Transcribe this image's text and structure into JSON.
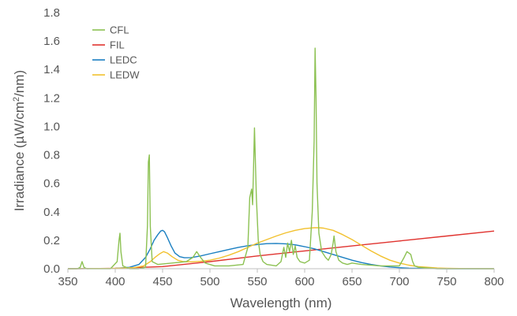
{
  "chart_data": {
    "type": "line",
    "title": "",
    "xlabel": "Wavelength (nm)",
    "ylabel_prefix": "Irradiance (µW/cm",
    "ylabel_sup": "2",
    "ylabel_suffix": "/nm)",
    "xlim": [
      350,
      800
    ],
    "ylim": [
      0,
      1.8
    ],
    "x_ticks": [
      350,
      400,
      450,
      500,
      550,
      600,
      650,
      700,
      750,
      800
    ],
    "x_tick_labels": [
      "350",
      "400",
      "450",
      "500",
      "550",
      "600",
      "650",
      "700",
      "750",
      "800"
    ],
    "y_ticks": [
      0,
      0.2,
      0.4,
      0.6,
      0.8,
      1.0,
      1.2,
      1.4,
      1.6,
      1.8
    ],
    "y_tick_labels": [
      "0.0",
      "0.2",
      "0.4",
      "0.6",
      "0.8",
      "1.0",
      "1.2",
      "1.4",
      "1.6",
      "1.8"
    ],
    "grid": false,
    "legend_position": "top-left",
    "series": [
      {
        "name": "CFL",
        "color": "#8cc152",
        "x": [
          350,
          360,
          363,
          365,
          367,
          370,
          380,
          395,
          402,
          404,
          405,
          406,
          408,
          415,
          425,
          432,
          434,
          435,
          436,
          437,
          439,
          445,
          460,
          475,
          482,
          486,
          490,
          495,
          505,
          520,
          535,
          540,
          542,
          544,
          545,
          546,
          547,
          549,
          551,
          553,
          556,
          560,
          570,
          575,
          578,
          580,
          582,
          584,
          586,
          588,
          590,
          592,
          595,
          600,
          605,
          608,
          610,
          611,
          612,
          613,
          615,
          618,
          622,
          625,
          628,
          630,
          631,
          633,
          636,
          640,
          645,
          650,
          660,
          680,
          700,
          705,
          708,
          710,
          712,
          714,
          716,
          720,
          740,
          760,
          780,
          800
        ],
        "y": [
          0,
          0,
          0.01,
          0.05,
          0.01,
          0,
          0,
          0,
          0.05,
          0.2,
          0.25,
          0.12,
          0.02,
          0,
          0,
          0.01,
          0.3,
          0.75,
          0.8,
          0.3,
          0.05,
          0.03,
          0.04,
          0.05,
          0.08,
          0.12,
          0.08,
          0.04,
          0.02,
          0.02,
          0.03,
          0.15,
          0.5,
          0.56,
          0.45,
          0.7,
          0.99,
          0.5,
          0.2,
          0.1,
          0.05,
          0.03,
          0.02,
          0.05,
          0.15,
          0.08,
          0.18,
          0.12,
          0.2,
          0.1,
          0.16,
          0.08,
          0.05,
          0.04,
          0.06,
          0.4,
          0.9,
          1.55,
          1.2,
          0.6,
          0.25,
          0.12,
          0.08,
          0.06,
          0.1,
          0.18,
          0.23,
          0.12,
          0.06,
          0.04,
          0.03,
          0.04,
          0.03,
          0.02,
          0.02,
          0.08,
          0.12,
          0.11,
          0.1,
          0.05,
          0.02,
          0.01,
          0,
          0,
          0,
          0
        ]
      },
      {
        "name": "FIL",
        "color": "#e0332f",
        "x": [
          350,
          400,
          450,
          500,
          550,
          600,
          650,
          700,
          750,
          800
        ],
        "y": [
          0,
          0.003,
          0.015,
          0.05,
          0.09,
          0.125,
          0.16,
          0.195,
          0.23,
          0.265
        ]
      },
      {
        "name": "LEDC",
        "color": "#1a7fc1",
        "x": [
          350,
          400,
          415,
          425,
          432,
          437,
          441,
          445,
          448,
          450,
          452,
          455,
          459,
          463,
          468,
          473,
          480,
          490,
          500,
          510,
          520,
          530,
          540,
          550,
          560,
          570,
          580,
          590,
          600,
          610,
          620,
          630,
          640,
          650,
          660,
          670,
          680,
          690,
          700,
          710,
          720,
          735,
          750,
          800
        ],
        "y": [
          0,
          0.002,
          0.01,
          0.03,
          0.08,
          0.14,
          0.2,
          0.24,
          0.265,
          0.27,
          0.26,
          0.22,
          0.16,
          0.11,
          0.085,
          0.077,
          0.078,
          0.09,
          0.105,
          0.12,
          0.135,
          0.15,
          0.162,
          0.17,
          0.176,
          0.178,
          0.175,
          0.168,
          0.155,
          0.14,
          0.12,
          0.1,
          0.08,
          0.06,
          0.043,
          0.03,
          0.02,
          0.012,
          0.007,
          0.004,
          0.002,
          0.001,
          0,
          0
        ]
      },
      {
        "name": "LEDW",
        "color": "#f2c12e",
        "x": [
          350,
          400,
          420,
          430,
          437,
          442,
          447,
          451,
          455,
          460,
          466,
          472,
          480,
          490,
          500,
          510,
          520,
          530,
          540,
          550,
          560,
          570,
          580,
          590,
          600,
          610,
          615,
          620,
          630,
          640,
          650,
          660,
          670,
          680,
          690,
          700,
          710,
          720,
          730,
          740,
          750,
          770,
          800
        ],
        "y": [
          0,
          0.002,
          0.008,
          0.02,
          0.05,
          0.08,
          0.105,
          0.12,
          0.11,
          0.085,
          0.06,
          0.05,
          0.048,
          0.052,
          0.06,
          0.075,
          0.095,
          0.12,
          0.15,
          0.18,
          0.205,
          0.23,
          0.252,
          0.27,
          0.282,
          0.288,
          0.288,
          0.285,
          0.27,
          0.24,
          0.205,
          0.165,
          0.125,
          0.09,
          0.06,
          0.04,
          0.025,
          0.015,
          0.01,
          0.005,
          0.003,
          0.001,
          0
        ]
      }
    ]
  }
}
